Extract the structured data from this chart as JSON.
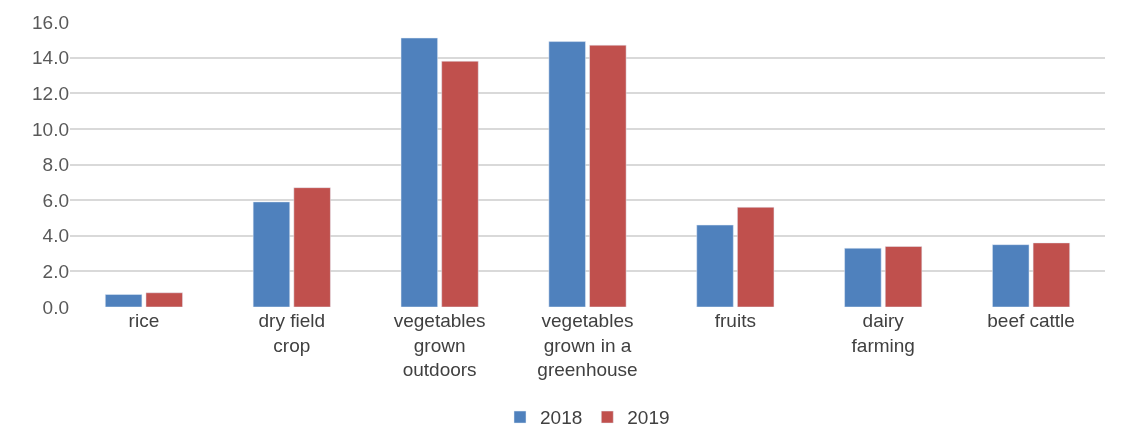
{
  "chart_data": {
    "type": "bar",
    "categories": [
      "rice",
      "dry field\ncrop",
      "vegetables\ngrown\noutdoors",
      "vegetables\ngrown in a\ngreenhouse",
      "fruits",
      "dairy\nfarming",
      "beef cattle"
    ],
    "series": [
      {
        "name": "2018",
        "color": "#4f81bd",
        "values": [
          0.7,
          5.9,
          15.1,
          14.9,
          4.6,
          3.3,
          3.5
        ]
      },
      {
        "name": "2019",
        "color": "#c0504d",
        "values": [
          0.8,
          6.7,
          13.8,
          14.7,
          5.6,
          3.4,
          3.6
        ]
      }
    ],
    "ylim": [
      0,
      16
    ],
    "yticks": [
      {
        "value": 0,
        "label": "0.0"
      },
      {
        "value": 2,
        "label": "2.0"
      },
      {
        "value": 4,
        "label": "4.0"
      },
      {
        "value": 6,
        "label": "6.0"
      },
      {
        "value": 8,
        "label": "8.0"
      },
      {
        "value": 10,
        "label": "10.0"
      },
      {
        "value": 12,
        "label": "12.0"
      },
      {
        "value": 14,
        "label": "14.0"
      },
      {
        "value": 16,
        "label": "16.0"
      }
    ],
    "grid": "y",
    "legend": "bottom"
  }
}
